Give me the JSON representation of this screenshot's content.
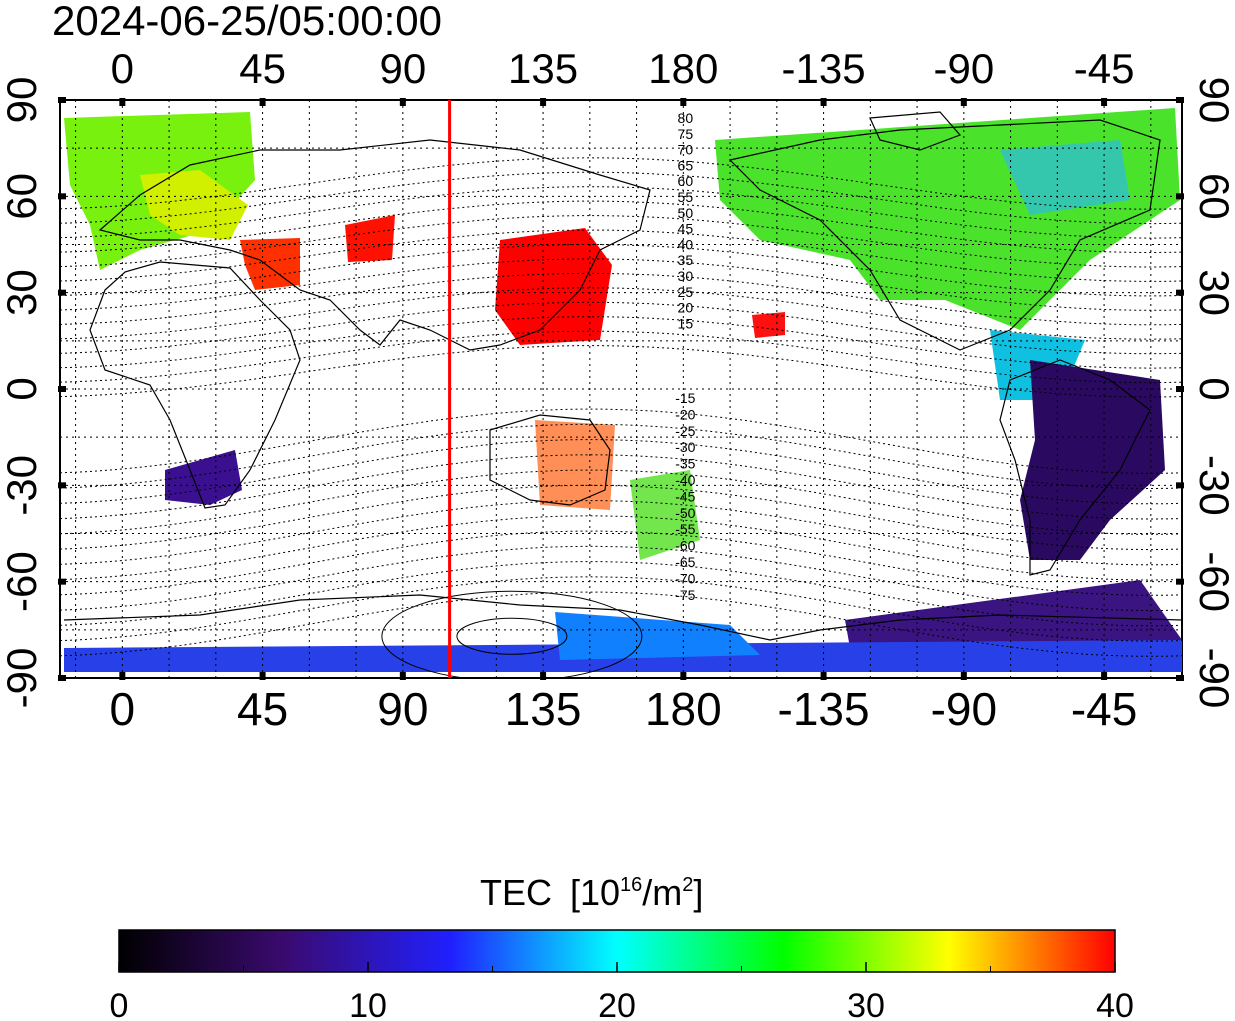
{
  "map": {
    "timestamp": "2024-06-25/05:00:00",
    "lon_ticks": [
      "0",
      "45",
      "90",
      "135",
      "180",
      "-135",
      "-90",
      "-45"
    ],
    "lat_ticks": [
      "90",
      "60",
      "30",
      "0",
      "-30",
      "-60",
      "-90"
    ],
    "lon_range": [
      -20,
      340
    ],
    "lat_range": [
      -90,
      90
    ],
    "terminator_longitude": 105,
    "terminator_color": "#ff0000",
    "dip_contours_north": [
      "80",
      "75",
      "70",
      "65",
      "60",
      "55",
      "50",
      "45",
      "40",
      "35",
      "30",
      "25",
      "20",
      "15"
    ],
    "dip_contours_south": [
      "-15",
      "-20",
      "-25",
      "-30",
      "-35",
      "-40",
      "-45",
      "-50",
      "-55",
      "-60",
      "-65",
      "-70",
      "-75"
    ]
  },
  "colorbar": {
    "title": "TEC",
    "unit_prefix": "[10",
    "unit_exp1": "16",
    "unit_mid": "/m",
    "unit_exp2": "2",
    "unit_suffix": "]",
    "min": 0,
    "max": 40,
    "ticks": [
      "0",
      "10",
      "20",
      "30",
      "40"
    ],
    "stops": [
      "#000000",
      "#3a0a70",
      "#2020ff",
      "#00ffff",
      "#00ff00",
      "#ffff00",
      "#ff0000"
    ]
  }
}
